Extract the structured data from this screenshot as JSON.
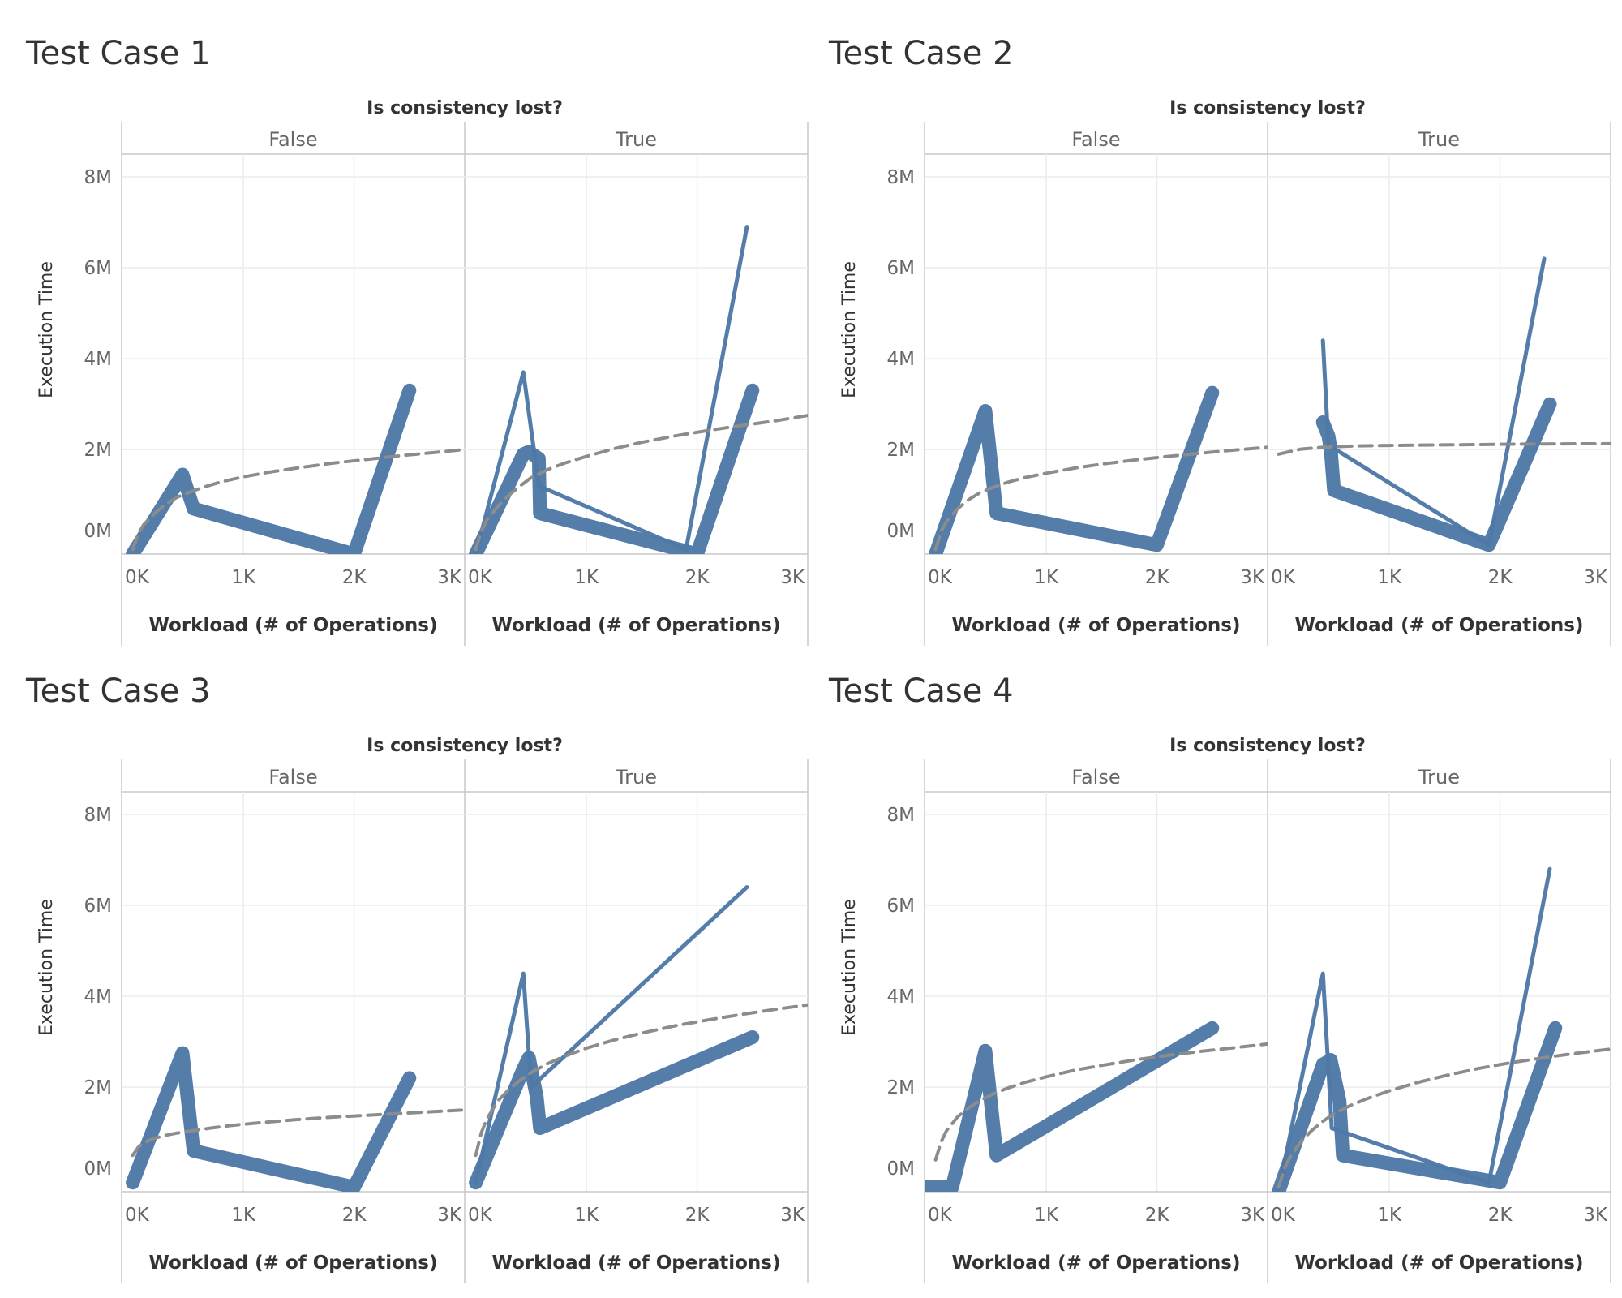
{
  "chart_data": [
    {
      "type": "line",
      "title": "Test Case 1",
      "column_header": "Is consistency lost?",
      "xlabel": "Workload (# of Operations)",
      "ylabel": "Execution Time",
      "xlim": [
        -100,
        3000
      ],
      "ylim": [
        -300000,
        8500000
      ],
      "x_ticks": [
        "0K",
        "1K",
        "2K",
        "3K"
      ],
      "y_ticks": [
        "0M",
        "2M",
        "4M",
        "6M",
        "8M"
      ],
      "panels": [
        {
          "name": "False",
          "series": [
            {
              "weight": "thick",
              "x": [
                0,
                450,
                550,
                2000,
                2500
              ],
              "y": [
                -300000,
                1450000,
                700000,
                -300000,
                3300000
              ]
            }
          ],
          "trend": {
            "x": [
              0,
              50,
              100,
              200,
              300,
              400,
              500,
              650,
              800,
              1000,
              1250,
              1500,
              1800,
              2100,
              2400,
              2700,
              3000
            ],
            "y": [
              -200000,
              150000,
              350000,
              600000,
              800000,
              950000,
              1050000,
              1180000,
              1290000,
              1400000,
              1510000,
              1600000,
              1700000,
              1780000,
              1860000,
              1930000,
              2000000
            ]
          }
        },
        {
          "name": "True",
          "series": [
            {
              "weight": "thick",
              "x": [
                0,
                430,
                480,
                570,
                580,
                2000,
                2500
              ],
              "y": [
                -300000,
                1900000,
                1950000,
                1800000,
                600000,
                -300000,
                3300000
              ]
            },
            {
              "weight": "thin",
              "x": [
                0,
                430,
                570,
                1900,
                2450
              ],
              "y": [
                -300000,
                3700000,
                1200000,
                -200000,
                6900000
              ]
            }
          ],
          "trend": {
            "x": [
              0,
              50,
              100,
              200,
              300,
              400,
              500,
              650,
              800,
              1000,
              1250,
              1500,
              1800,
              2100,
              2400,
              2700,
              3000
            ],
            "y": [
              -200000,
              200000,
              450000,
              750000,
              1000000,
              1200000,
              1380000,
              1560000,
              1700000,
              1850000,
              2020000,
              2160000,
              2300000,
              2420000,
              2530000,
              2630000,
              2750000
            ]
          }
        }
      ]
    },
    {
      "type": "line",
      "title": "Test Case 2",
      "column_header": "Is consistency lost?",
      "xlabel": "Workload (# of Operations)",
      "ylabel": "Execution Time",
      "xlim": [
        -100,
        3000
      ],
      "ylim": [
        -300000,
        8500000
      ],
      "x_ticks": [
        "0K",
        "1K",
        "2K",
        "3K"
      ],
      "y_ticks": [
        "0M",
        "2M",
        "4M",
        "6M",
        "8M"
      ],
      "panels": [
        {
          "name": "False",
          "series": [
            {
              "weight": "thick",
              "x": [
                0,
                450,
                550,
                2000,
                2500
              ],
              "y": [
                -300000,
                2850000,
                600000,
                -100000,
                3250000
              ]
            }
          ],
          "trend": {
            "x": [
              0,
              50,
              100,
              200,
              300,
              400,
              500,
              650,
              800,
              1000,
              1250,
              1500,
              1800,
              2100,
              2400,
              2700,
              3000
            ],
            "y": [
              -200000,
              200000,
              420000,
              700000,
              900000,
              1050000,
              1150000,
              1280000,
              1380000,
              1480000,
              1590000,
              1680000,
              1770000,
              1850000,
              1920000,
              1990000,
              2050000
            ]
          }
        },
        {
          "name": "True",
          "series": [
            {
              "weight": "thick",
              "x": [
                400,
                450,
                470,
                500,
                1900,
                2450
              ],
              "y": [
                2600000,
                2300000,
                2000000,
                1100000,
                -100000,
                3000000
              ]
            },
            {
              "weight": "thin",
              "x": [
                400,
                450,
                1900,
                2400
              ],
              "y": [
                4400000,
                2100000,
                -100000,
                6200000
              ]
            }
          ],
          "trend": {
            "x": [
              0,
              200,
              400,
              700,
              1000,
              1400,
              1800,
              2200,
              2600,
              3000
            ],
            "y": [
              1900000,
              2010000,
              2050000,
              2080000,
              2090000,
              2100000,
              2110000,
              2120000,
              2125000,
              2130000
            ]
          }
        }
      ]
    },
    {
      "type": "line",
      "title": "Test Case 3",
      "column_header": "Is consistency lost?",
      "xlabel": "Workload (# of Operations)",
      "ylabel": "Execution Time",
      "xlim": [
        -100,
        3000
      ],
      "ylim": [
        -300000,
        8500000
      ],
      "x_ticks": [
        "0K",
        "1K",
        "2K",
        "3K"
      ],
      "y_ticks": [
        "0M",
        "2M",
        "4M",
        "6M",
        "8M"
      ],
      "panels": [
        {
          "name": "False",
          "series": [
            {
              "weight": "thick",
              "x": [
                0,
                450,
                550,
                2000,
                2500
              ],
              "y": [
                -100000,
                2750000,
                600000,
                -200000,
                2200000
              ]
            }
          ],
          "trend": {
            "x": [
              0,
              50,
              100,
              200,
              300,
              400,
              500,
              700,
              900,
              1200,
              1500,
              1800,
              2100,
              2400,
              2700,
              3000
            ],
            "y": [
              500000,
              680000,
              780000,
              880000,
              940000,
              990000,
              1030000,
              1100000,
              1160000,
              1230000,
              1290000,
              1340000,
              1380000,
              1420000,
              1460000,
              1500000
            ]
          }
        },
        {
          "name": "True",
          "series": [
            {
              "weight": "thick",
              "x": [
                0,
                430,
                480,
                550,
                580,
                2500
              ],
              "y": [
                -100000,
                2400000,
                2650000,
                1800000,
                1100000,
                3100000
              ]
            },
            {
              "weight": "thin",
              "x": [
                0,
                430,
                500,
                2450
              ],
              "y": [
                -100000,
                4500000,
                2000000,
                6400000
              ]
            }
          ],
          "trend": {
            "x": [
              0,
              50,
              100,
              200,
              300,
              400,
              500,
              650,
              800,
              1000,
              1250,
              1500,
              1800,
              2100,
              2400,
              2700,
              3000
            ],
            "y": [
              500000,
              1000000,
              1300000,
              1700000,
              1950000,
              2150000,
              2320000,
              2520000,
              2680000,
              2860000,
              3040000,
              3190000,
              3350000,
              3480000,
              3600000,
              3710000,
              3810000
            ]
          }
        }
      ]
    },
    {
      "type": "line",
      "title": "Test Case 4",
      "column_header": "Is consistency lost?",
      "xlabel": "Workload (# of Operations)",
      "ylabel": "Execution Time",
      "xlim": [
        -100,
        3000
      ],
      "ylim": [
        -300000,
        8500000
      ],
      "x_ticks": [
        "0K",
        "1K",
        "2K",
        "3K"
      ],
      "y_ticks": [
        "0M",
        "2M",
        "4M",
        "6M",
        "8M"
      ],
      "panels": [
        {
          "name": "False",
          "series": [
            {
              "weight": "thick",
              "x": [
                -100,
                150,
                450,
                550,
                2500
              ],
              "y": [
                -200000,
                -200000,
                2800000,
                500000,
                3300000
              ]
            }
          ],
          "trend": {
            "x": [
              0,
              50,
              100,
              200,
              300,
              400,
              500,
              650,
              800,
              1000,
              1250,
              1500,
              1800,
              2100,
              2400,
              2700,
              3000
            ],
            "y": [
              400000,
              800000,
              1050000,
              1350000,
              1550000,
              1700000,
              1830000,
              1980000,
              2100000,
              2230000,
              2370000,
              2480000,
              2600000,
              2700000,
              2790000,
              2870000,
              2950000
            ]
          }
        },
        {
          "name": "True",
          "series": [
            {
              "weight": "thick",
              "x": [
                0,
                400,
                470,
                550,
                580,
                2000,
                2500
              ],
              "y": [
                -300000,
                2500000,
                2600000,
                1700000,
                500000,
                -100000,
                3300000
              ]
            },
            {
              "weight": "thin",
              "x": [
                0,
                400,
                480,
                1900,
                2450
              ],
              "y": [
                -300000,
                4500000,
                1100000,
                -100000,
                6800000
              ]
            }
          ],
          "trend": {
            "x": [
              0,
              50,
              100,
              200,
              300,
              400,
              500,
              650,
              800,
              1000,
              1250,
              1500,
              1800,
              2100,
              2400,
              2700,
              3000
            ],
            "y": [
              -200000,
              200000,
              450000,
              800000,
              1050000,
              1250000,
              1420000,
              1600000,
              1750000,
              1920000,
              2100000,
              2250000,
              2410000,
              2540000,
              2650000,
              2750000,
              2840000
            ]
          }
        }
      ]
    }
  ],
  "colors": {
    "line": "#4e79a7",
    "trend": "#8c8c8c"
  }
}
